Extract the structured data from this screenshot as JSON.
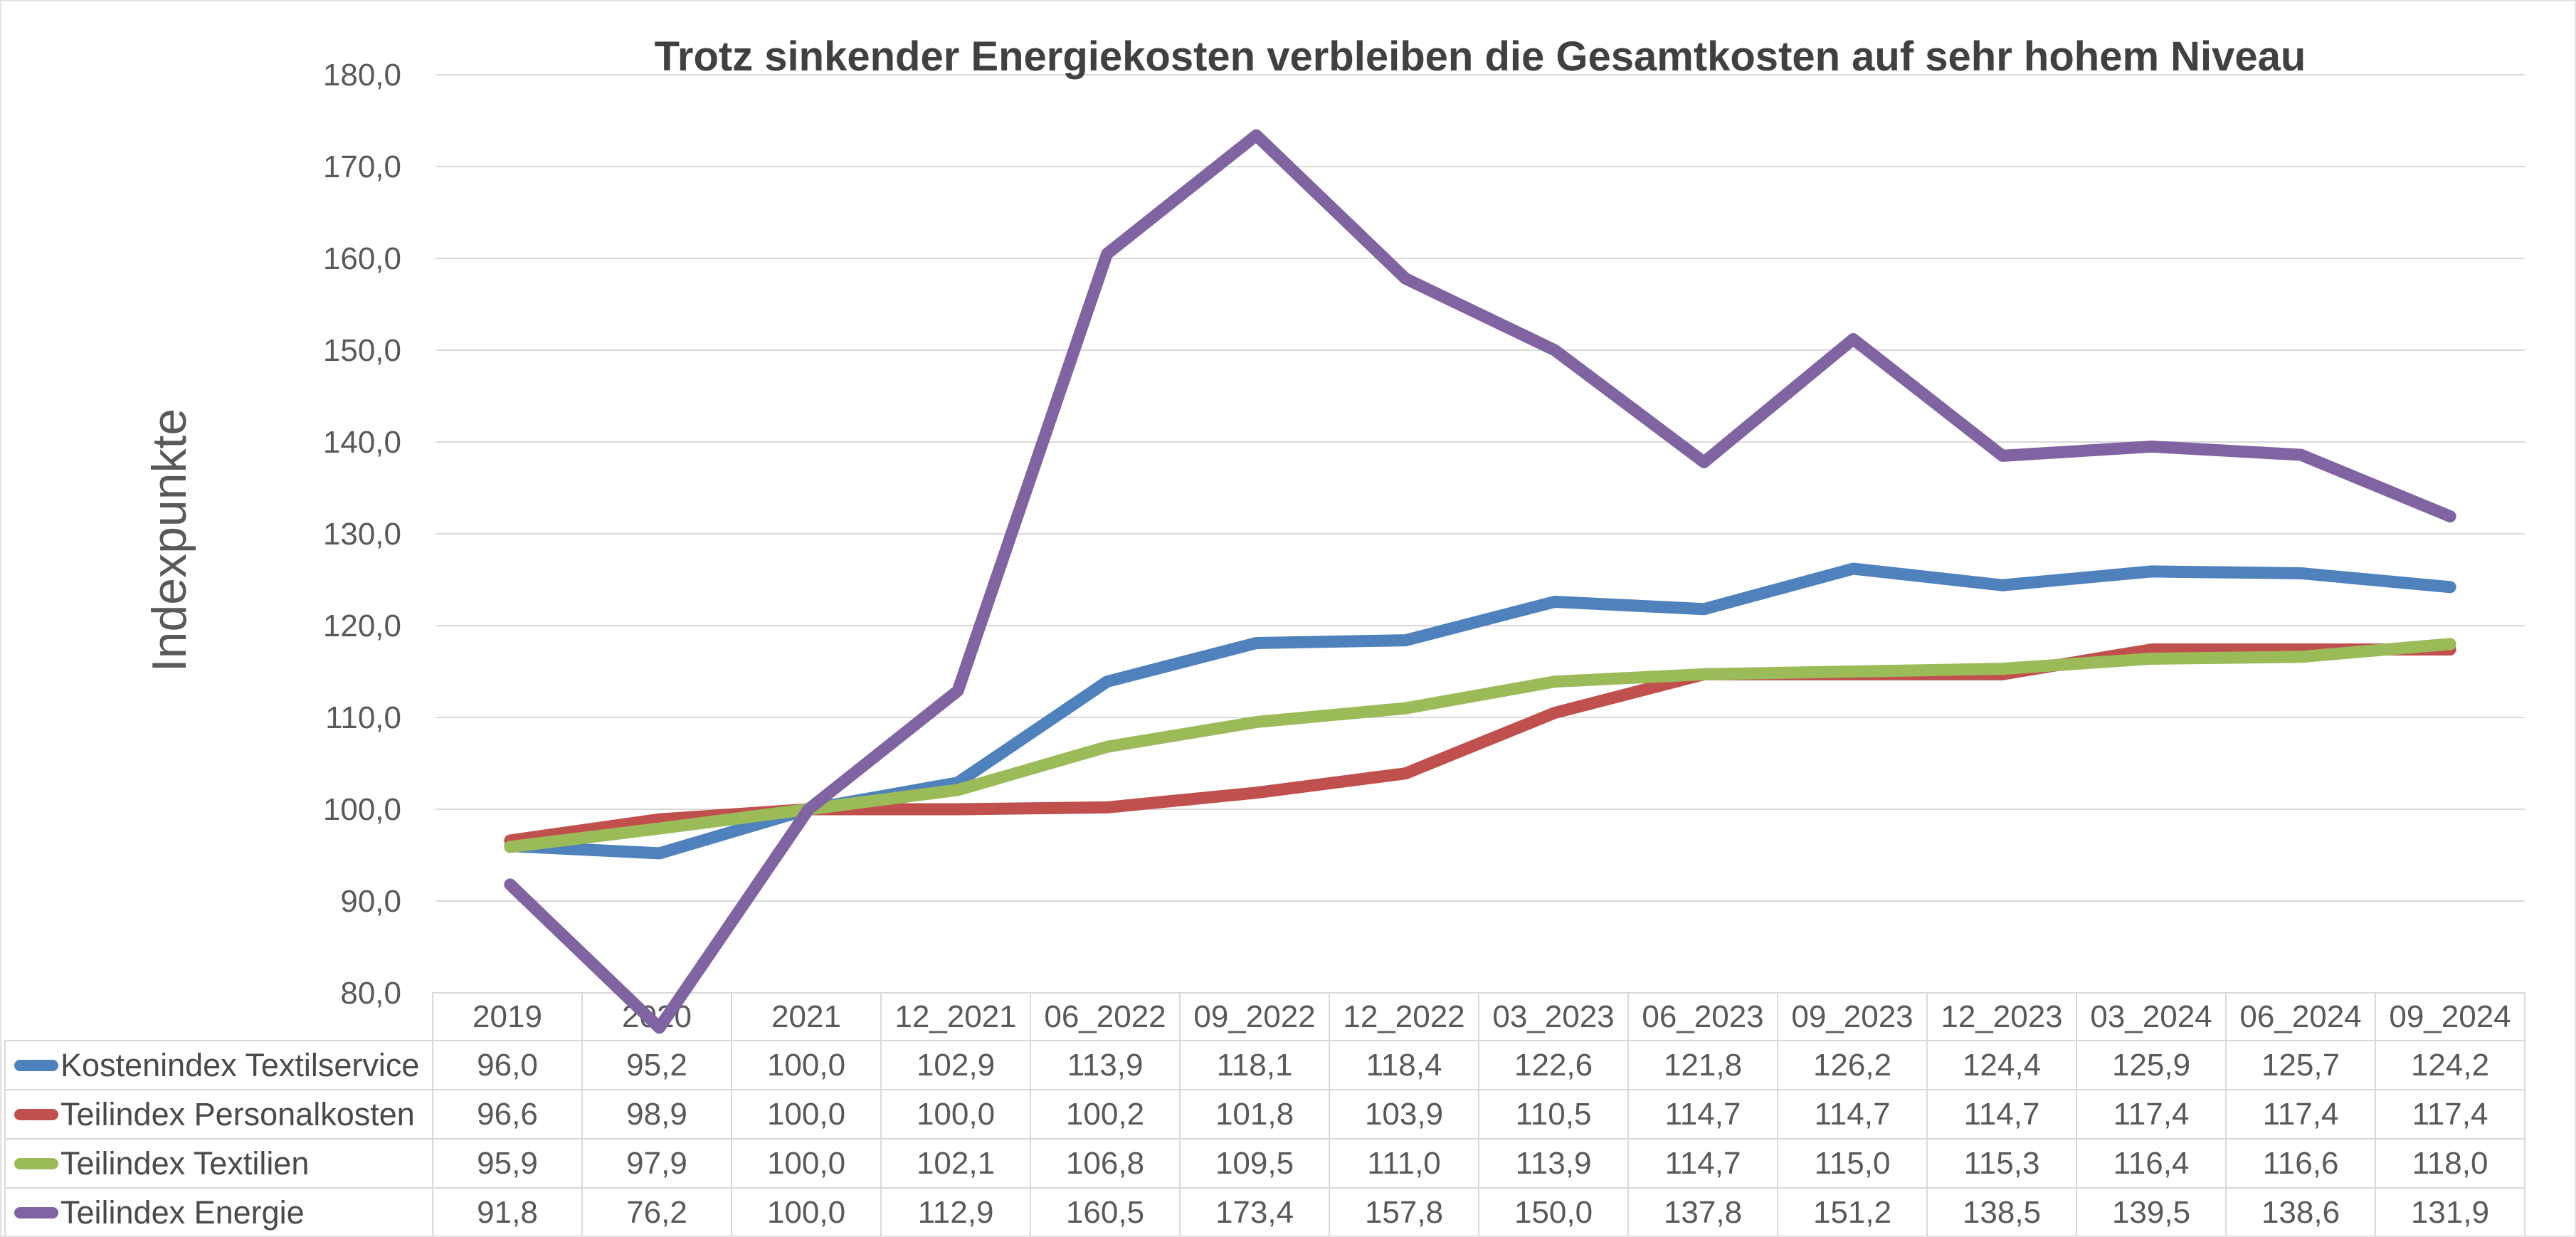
{
  "chart_data": {
    "type": "line",
    "title": "Trotz sinkender Energiekosten verbleiben die Gesamtkosten auf sehr hohem Niveau",
    "xlabel": "",
    "ylabel": "Indexpunkte",
    "ylim": [
      80,
      180
    ],
    "yticks": [
      180,
      170,
      160,
      150,
      140,
      130,
      120,
      110,
      100,
      90,
      80
    ],
    "grid": true,
    "legend_position": "table-left",
    "decimal_separator": ",",
    "categories": [
      "2019",
      "2020",
      "2021",
      "12_2021",
      "06_2022",
      "09_2022",
      "12_2022",
      "03_2023",
      "06_2023",
      "09_2023",
      "12_2023",
      "03_2024",
      "06_2024",
      "09_2024"
    ],
    "series": [
      {
        "name": "Kostenindex Textilservice",
        "color": "#4F81BD",
        "values": [
          96.0,
          95.2,
          100.0,
          102.9,
          113.9,
          118.1,
          118.4,
          122.6,
          121.8,
          126.2,
          124.4,
          125.9,
          125.7,
          124.2
        ]
      },
      {
        "name": "Teilindex Personalkosten",
        "color": "#C0504D",
        "values": [
          96.6,
          98.9,
          100.0,
          100.0,
          100.2,
          101.8,
          103.9,
          110.5,
          114.7,
          114.7,
          114.7,
          117.4,
          117.4,
          117.4
        ]
      },
      {
        "name": "Teilindex Textilien",
        "color": "#9BBB59",
        "values": [
          95.9,
          97.9,
          100.0,
          102.1,
          106.8,
          109.5,
          111.0,
          113.9,
          114.7,
          115.0,
          115.3,
          116.4,
          116.6,
          118.0
        ]
      },
      {
        "name": "Teilindex Energie",
        "color": "#8064A2",
        "values": [
          91.8,
          76.2,
          100.0,
          112.9,
          160.5,
          173.4,
          157.8,
          150.0,
          137.8,
          151.2,
          138.5,
          139.5,
          138.6,
          131.9
        ]
      }
    ]
  },
  "colors": {
    "grid": "#D9D9D9",
    "table_border": "#D9D9D9",
    "frame": "#E3E3E3",
    "text": "#595959",
    "title": "#404040"
  }
}
